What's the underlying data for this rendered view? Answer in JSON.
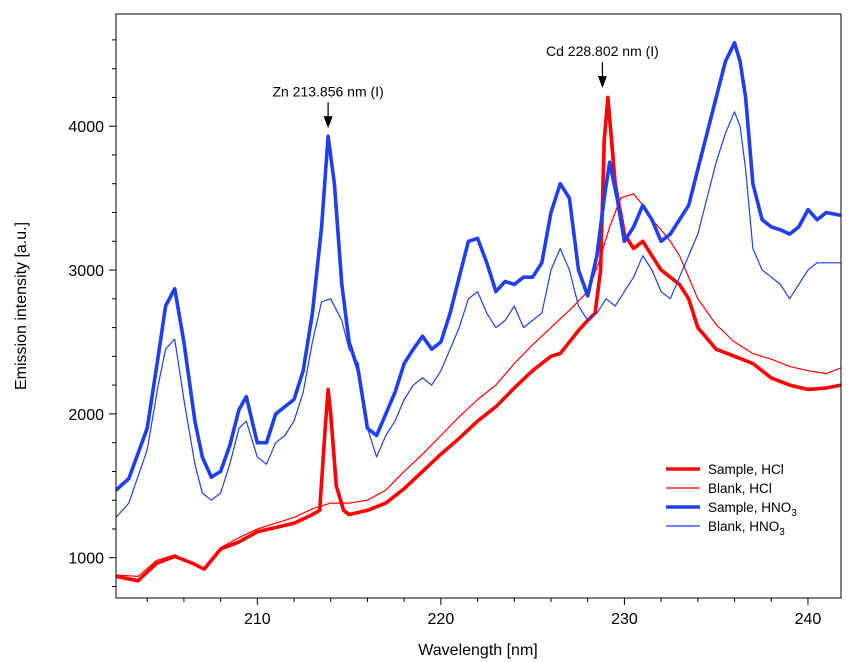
{
  "chart_data": {
    "type": "line",
    "xlabel": "Wavelength [nm]",
    "ylabel": "Emission intensity [a.u.]",
    "xlim": [
      202.3,
      241.8
    ],
    "ylim": [
      720,
      4780
    ],
    "xticks": [
      210,
      220,
      230,
      240
    ],
    "yticks": [
      1000,
      2000,
      3000,
      4000
    ],
    "grid": false,
    "legend_position": "bottom-right",
    "annotations": [
      {
        "label": "Zn 213.856 nm (I)",
        "x": 213.856,
        "y": 3930
      },
      {
        "label": "Cd 228.802 nm (I)",
        "x": 228.802,
        "y": 4210
      }
    ],
    "series": [
      {
        "name": "Sample, HCl",
        "name_main": "Sample, HCl",
        "name_sub": "",
        "color": "#ff0000",
        "style": "thick",
        "x": [
          202.3,
          203.5,
          204.5,
          205.5,
          206.5,
          207.1,
          208.0,
          209.0,
          210.0,
          211.0,
          212.0,
          213.0,
          213.4,
          213.7,
          213.856,
          214.0,
          214.3,
          214.7,
          215.0,
          216.0,
          217.0,
          218.0,
          219.0,
          220.0,
          221.0,
          222.0,
          223.0,
          224.0,
          225.0,
          226.0,
          226.5,
          227.0,
          227.5,
          228.0,
          228.4,
          228.7,
          228.9,
          229.1,
          229.5,
          230.0,
          230.5,
          231.0,
          231.5,
          232.0,
          232.5,
          233.0,
          233.5,
          234.0,
          235.0,
          236.0,
          237.0,
          238.0,
          239.0,
          240.0,
          241.0,
          241.8
        ],
        "values": [
          870,
          840,
          960,
          1010,
          960,
          920,
          1060,
          1110,
          1180,
          1210,
          1240,
          1300,
          1330,
          1900,
          2170,
          2000,
          1500,
          1330,
          1300,
          1330,
          1380,
          1480,
          1600,
          1720,
          1830,
          1950,
          2050,
          2180,
          2300,
          2400,
          2420,
          2500,
          2580,
          2650,
          2700,
          3000,
          3900,
          4200,
          3600,
          3250,
          3150,
          3200,
          3100,
          3000,
          2950,
          2900,
          2800,
          2600,
          2450,
          2400,
          2350,
          2250,
          2200,
          2170,
          2180,
          2200
        ]
      },
      {
        "name": "Blank, HCl",
        "name_main": "Blank, HCl",
        "name_sub": "",
        "color": "#ff0000",
        "style": "thin",
        "x": [
          202.3,
          203.5,
          204.5,
          205.5,
          206.5,
          207.1,
          208.0,
          209.0,
          210.0,
          211.0,
          212.0,
          213.0,
          214.0,
          215.0,
          216.0,
          217.0,
          218.0,
          219.0,
          220.0,
          221.0,
          222.0,
          223.0,
          224.0,
          225.0,
          226.0,
          227.0,
          228.0,
          228.6,
          229.2,
          229.8,
          230.5,
          231.0,
          231.5,
          232.0,
          232.5,
          233.0,
          233.5,
          234.0,
          235.0,
          236.0,
          237.0,
          238.0,
          239.0,
          240.0,
          241.0,
          241.8
        ],
        "values": [
          880,
          870,
          980,
          1020,
          960,
          930,
          1070,
          1140,
          1200,
          1240,
          1280,
          1340,
          1380,
          1380,
          1400,
          1470,
          1600,
          1720,
          1850,
          1980,
          2100,
          2200,
          2350,
          2480,
          2600,
          2720,
          2850,
          3050,
          3300,
          3500,
          3530,
          3450,
          3350,
          3280,
          3200,
          3100,
          2950,
          2800,
          2620,
          2500,
          2420,
          2380,
          2330,
          2300,
          2280,
          2320
        ]
      },
      {
        "name": "Sample, HNO3",
        "name_main": "Sample, HNO",
        "name_sub": "3",
        "color": "#1f3ff0",
        "style": "thick",
        "x": [
          202.3,
          203.0,
          204.0,
          204.6,
          205.0,
          205.5,
          206.0,
          206.6,
          207.0,
          207.5,
          208.0,
          208.5,
          209.0,
          209.4,
          210.0,
          210.5,
          211.0,
          211.5,
          212.0,
          212.5,
          213.0,
          213.5,
          213.856,
          214.2,
          214.6,
          215.0,
          215.5,
          216.0,
          216.5,
          217.0,
          217.5,
          218.0,
          218.5,
          219.0,
          219.5,
          220.0,
          220.5,
          221.0,
          221.5,
          222.0,
          222.5,
          223.0,
          223.5,
          224.0,
          224.5,
          225.0,
          225.5,
          226.0,
          226.5,
          227.0,
          227.5,
          228.0,
          228.5,
          228.9,
          229.2,
          229.6,
          230.0,
          230.5,
          231.0,
          231.5,
          232.0,
          232.5,
          233.0,
          233.5,
          234.0,
          234.5,
          235.0,
          235.5,
          236.0,
          236.3,
          236.6,
          237.0,
          237.5,
          238.0,
          238.5,
          239.0,
          239.5,
          240.0,
          240.5,
          241.0,
          241.8
        ],
        "values": [
          1470,
          1550,
          1900,
          2400,
          2750,
          2870,
          2500,
          1950,
          1700,
          1560,
          1600,
          1780,
          2030,
          2120,
          1800,
          1800,
          2000,
          2050,
          2100,
          2300,
          2700,
          3300,
          3930,
          3600,
          2900,
          2500,
          2300,
          1900,
          1850,
          2000,
          2150,
          2350,
          2450,
          2540,
          2450,
          2500,
          2700,
          2950,
          3200,
          3220,
          3050,
          2850,
          2920,
          2900,
          2950,
          2950,
          3050,
          3400,
          3600,
          3500,
          3000,
          2820,
          3100,
          3500,
          3750,
          3500,
          3200,
          3300,
          3450,
          3350,
          3200,
          3250,
          3350,
          3450,
          3700,
          3950,
          4200,
          4450,
          4580,
          4450,
          4200,
          3600,
          3350,
          3300,
          3280,
          3250,
          3300,
          3420,
          3350,
          3400,
          3380
        ]
      },
      {
        "name": "Blank, HNO3",
        "name_main": "Blank, HNO",
        "name_sub": "3",
        "color": "#1f3ff0",
        "style": "thin",
        "x": [
          202.3,
          203.0,
          204.0,
          204.6,
          205.0,
          205.5,
          206.0,
          206.6,
          207.0,
          207.5,
          208.0,
          208.5,
          209.0,
          209.4,
          210.0,
          210.5,
          211.0,
          211.5,
          212.0,
          212.5,
          213.0,
          213.5,
          214.0,
          214.6,
          215.0,
          215.5,
          216.0,
          216.5,
          217.0,
          217.5,
          218.0,
          218.5,
          219.0,
          219.5,
          220.0,
          220.5,
          221.0,
          221.5,
          222.0,
          222.5,
          223.0,
          223.5,
          224.0,
          224.5,
          225.0,
          225.5,
          226.0,
          226.5,
          227.0,
          227.5,
          228.0,
          228.5,
          229.0,
          229.5,
          230.0,
          230.5,
          231.0,
          231.5,
          232.0,
          232.5,
          233.0,
          233.5,
          234.0,
          234.5,
          235.0,
          235.5,
          236.0,
          236.3,
          236.6,
          237.0,
          237.5,
          238.0,
          238.5,
          239.0,
          239.5,
          240.0,
          240.5,
          241.0,
          241.8
        ],
        "values": [
          1280,
          1380,
          1750,
          2200,
          2450,
          2520,
          2100,
          1650,
          1450,
          1400,
          1450,
          1650,
          1900,
          1950,
          1700,
          1650,
          1800,
          1850,
          1950,
          2150,
          2500,
          2780,
          2800,
          2650,
          2450,
          2350,
          1900,
          1700,
          1850,
          1950,
          2100,
          2200,
          2250,
          2200,
          2300,
          2450,
          2600,
          2800,
          2850,
          2700,
          2600,
          2650,
          2750,
          2600,
          2650,
          2700,
          3000,
          3150,
          3000,
          2750,
          2650,
          2700,
          2800,
          2750,
          2850,
          2950,
          3100,
          3000,
          2850,
          2800,
          2950,
          3100,
          3250,
          3500,
          3750,
          3950,
          4100,
          4000,
          3700,
          3150,
          3000,
          2950,
          2900,
          2800,
          2900,
          3000,
          3050,
          3050,
          3050
        ]
      }
    ]
  }
}
